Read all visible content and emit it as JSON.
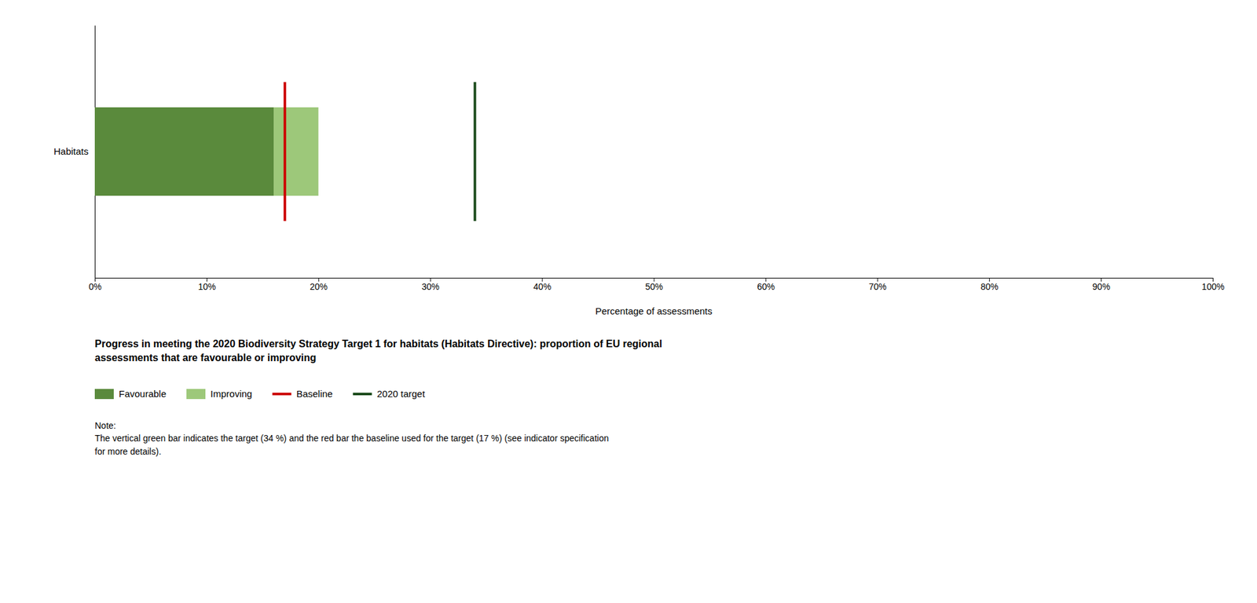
{
  "chart_data": {
    "type": "bar",
    "orientation": "horizontal",
    "stacked": true,
    "grid": false,
    "legend": "bottom",
    "title": "Progress in meeting the 2020 Biodiversity Strategy Target 1 for habitats (Habitats Directive): proportion of EU regional\nassessments that are favourable or improving",
    "xlabel": "Percentage of assessments",
    "note": "Note:\nThe vertical green bar indicates the target (34 %) and the red bar the baseline used for the target (17 %) (see indicator specification\nfor more details).",
    "categories": [
      "Habitats"
    ],
    "series": [
      {
        "name": "Favourable",
        "type": "bar",
        "color": "#5a8a3c",
        "values": [
          16
        ]
      },
      {
        "name": "Improving",
        "type": "bar",
        "color": "#9dc87a",
        "values": [
          4
        ]
      },
      {
        "name": "Baseline",
        "type": "rule",
        "color": "#cc0000",
        "values": [
          17
        ]
      },
      {
        "name": "2020 target",
        "type": "rule",
        "color": "#1a4a1a",
        "values": [
          34
        ]
      }
    ],
    "xlim": [
      0,
      100
    ],
    "xticks": [
      {
        "value": 0,
        "label": "0%"
      },
      {
        "value": 10,
        "label": "10%"
      },
      {
        "value": 20,
        "label": "20%"
      },
      {
        "value": 30,
        "label": "30%"
      },
      {
        "value": 40,
        "label": "40%"
      },
      {
        "value": 50,
        "label": "50%"
      },
      {
        "value": 60,
        "label": "60%"
      },
      {
        "value": 70,
        "label": "70%"
      },
      {
        "value": 80,
        "label": "80%"
      },
      {
        "value": 90,
        "label": "90%"
      },
      {
        "value": 100,
        "label": "100%"
      }
    ]
  }
}
